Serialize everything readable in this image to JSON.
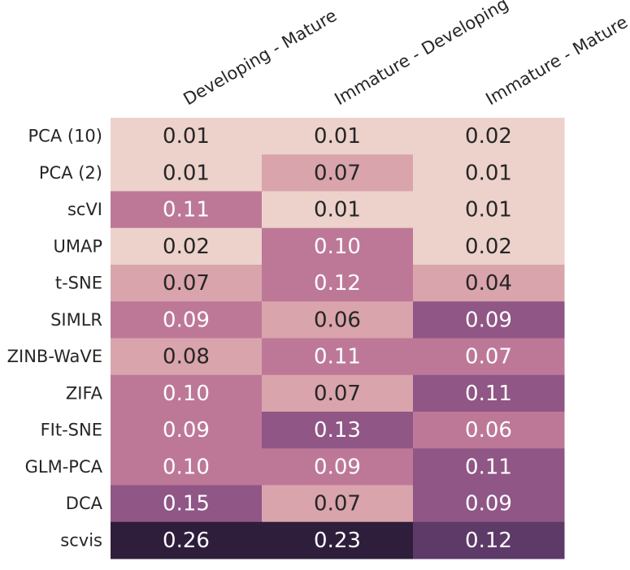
{
  "chart_data": {
    "type": "heatmap",
    "columns": [
      "Developing - Mature",
      "Immature - Developing",
      "Immature - Mature"
    ],
    "rows": [
      "PCA (10)",
      "PCA (2)",
      "scVI",
      "UMAP",
      "t-SNE",
      "SIMLR",
      "ZINB-WaVE",
      "ZIFA",
      "FIt-SNE",
      "GLM-PCA",
      "DCA",
      "scvis"
    ],
    "values": [
      [
        0.01,
        0.01,
        0.02
      ],
      [
        0.01,
        0.07,
        0.01
      ],
      [
        0.11,
        0.01,
        0.01
      ],
      [
        0.02,
        0.1,
        0.02
      ],
      [
        0.07,
        0.12,
        0.04
      ],
      [
        0.09,
        0.06,
        0.09
      ],
      [
        0.08,
        0.11,
        0.07
      ],
      [
        0.1,
        0.07,
        0.11
      ],
      [
        0.09,
        0.13,
        0.06
      ],
      [
        0.1,
        0.09,
        0.11
      ],
      [
        0.15,
        0.07,
        0.09
      ],
      [
        0.26,
        0.23,
        0.12
      ]
    ],
    "labels": [
      [
        "0.01",
        "0.01",
        "0.02"
      ],
      [
        "0.01",
        "0.07",
        "0.01"
      ],
      [
        "0.11",
        "0.01",
        "0.01"
      ],
      [
        "0.02",
        "0.10",
        "0.02"
      ],
      [
        "0.07",
        "0.12",
        "0.04"
      ],
      [
        "0.09",
        "0.06",
        "0.09"
      ],
      [
        "0.08",
        "0.11",
        "0.07"
      ],
      [
        "0.10",
        "0.07",
        "0.11"
      ],
      [
        "0.09",
        "0.13",
        "0.06"
      ],
      [
        "0.10",
        "0.09",
        "0.11"
      ],
      [
        "0.15",
        "0.07",
        "0.09"
      ],
      [
        "0.26",
        "0.23",
        "0.12"
      ]
    ],
    "cell_colors": [
      [
        "#ecd2cb",
        "#ecd2cb",
        "#ecd2cb"
      ],
      [
        "#ecd2cb",
        "#d9a4ab",
        "#ecd2cb"
      ],
      [
        "#bd7898",
        "#ecd2cb",
        "#ecd2cb"
      ],
      [
        "#ecd2cb",
        "#bd7898",
        "#ecd2cb"
      ],
      [
        "#d9a4ab",
        "#bd7898",
        "#d9a4ab"
      ],
      [
        "#bd7898",
        "#d9a4ab",
        "#8f5686"
      ],
      [
        "#d9a4ab",
        "#bd7898",
        "#bd7898"
      ],
      [
        "#bd7898",
        "#d9a4ab",
        "#8f5686"
      ],
      [
        "#bd7898",
        "#8f5686",
        "#bd7898"
      ],
      [
        "#bd7898",
        "#bd7898",
        "#8f5686"
      ],
      [
        "#8f5686",
        "#d9a4ab",
        "#8f5686"
      ],
      [
        "#2e1e3b",
        "#2e1e3b",
        "#5e3a68"
      ]
    ],
    "text_colors": [
      [
        "#262626",
        "#262626",
        "#262626"
      ],
      [
        "#262626",
        "#262626",
        "#262626"
      ],
      [
        "#ffffff",
        "#262626",
        "#262626"
      ],
      [
        "#262626",
        "#ffffff",
        "#262626"
      ],
      [
        "#262626",
        "#ffffff",
        "#262626"
      ],
      [
        "#ffffff",
        "#262626",
        "#ffffff"
      ],
      [
        "#262626",
        "#ffffff",
        "#ffffff"
      ],
      [
        "#ffffff",
        "#262626",
        "#ffffff"
      ],
      [
        "#ffffff",
        "#ffffff",
        "#ffffff"
      ],
      [
        "#ffffff",
        "#ffffff",
        "#ffffff"
      ],
      [
        "#ffffff",
        "#262626",
        "#ffffff"
      ],
      [
        "#ffffff",
        "#ffffff",
        "#ffffff"
      ]
    ],
    "colorbar": false,
    "legend": "none"
  }
}
